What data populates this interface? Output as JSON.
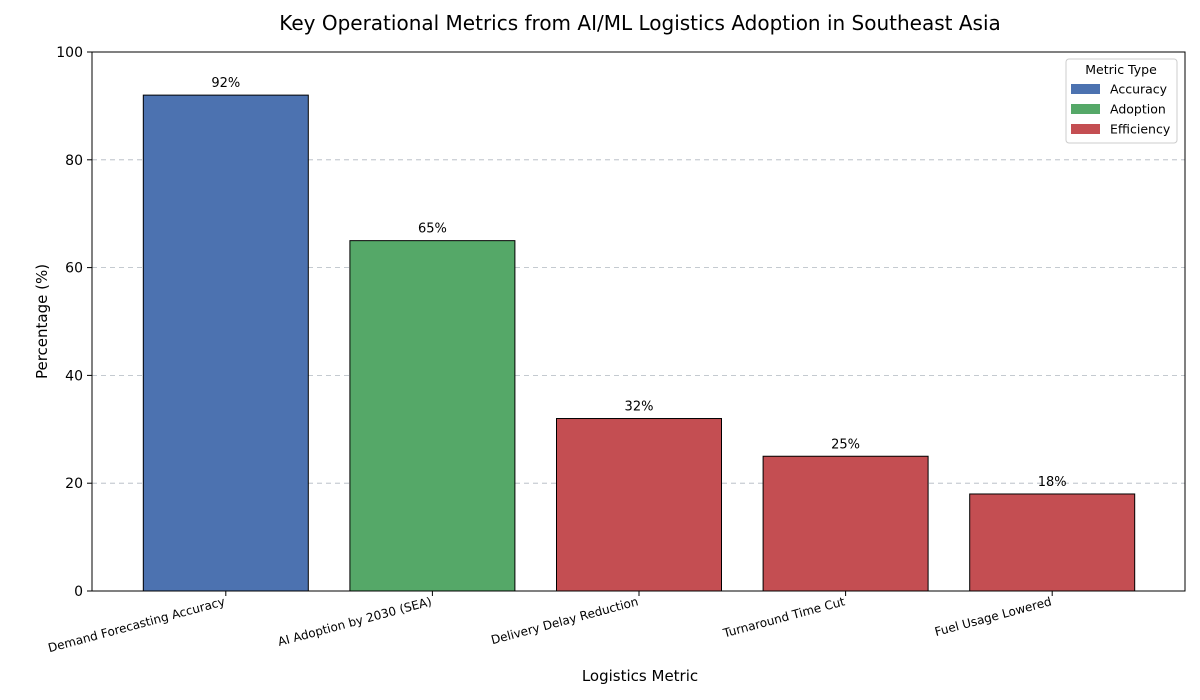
{
  "chart_data": {
    "type": "bar",
    "title": "Key Operational Metrics from AI/ML Logistics Adoption in Southeast Asia",
    "xlabel": "Logistics Metric",
    "ylabel": "Percentage (%)",
    "ylim": [
      0,
      100
    ],
    "yticks": [
      0,
      20,
      40,
      60,
      80,
      100
    ],
    "grid": "y-dashed",
    "categories": [
      "Demand Forecasting Accuracy",
      "AI Adoption by 2030 (SEA)",
      "Delivery Delay Reduction",
      "Turnaround Time Cut",
      "Fuel Usage Lowered"
    ],
    "values": [
      92,
      65,
      32,
      25,
      18
    ],
    "value_labels": [
      "92%",
      "65%",
      "32%",
      "25%",
      "18%"
    ],
    "bar_types": [
      "Accuracy",
      "Adoption",
      "Efficiency",
      "Efficiency",
      "Efficiency"
    ],
    "legend": {
      "title": "Metric Type",
      "placement": "top-right",
      "entries": [
        {
          "name": "Accuracy",
          "color": "#4c72b0"
        },
        {
          "name": "Adoption",
          "color": "#55a868"
        },
        {
          "name": "Efficiency",
          "color": "#c44e52"
        }
      ]
    }
  }
}
